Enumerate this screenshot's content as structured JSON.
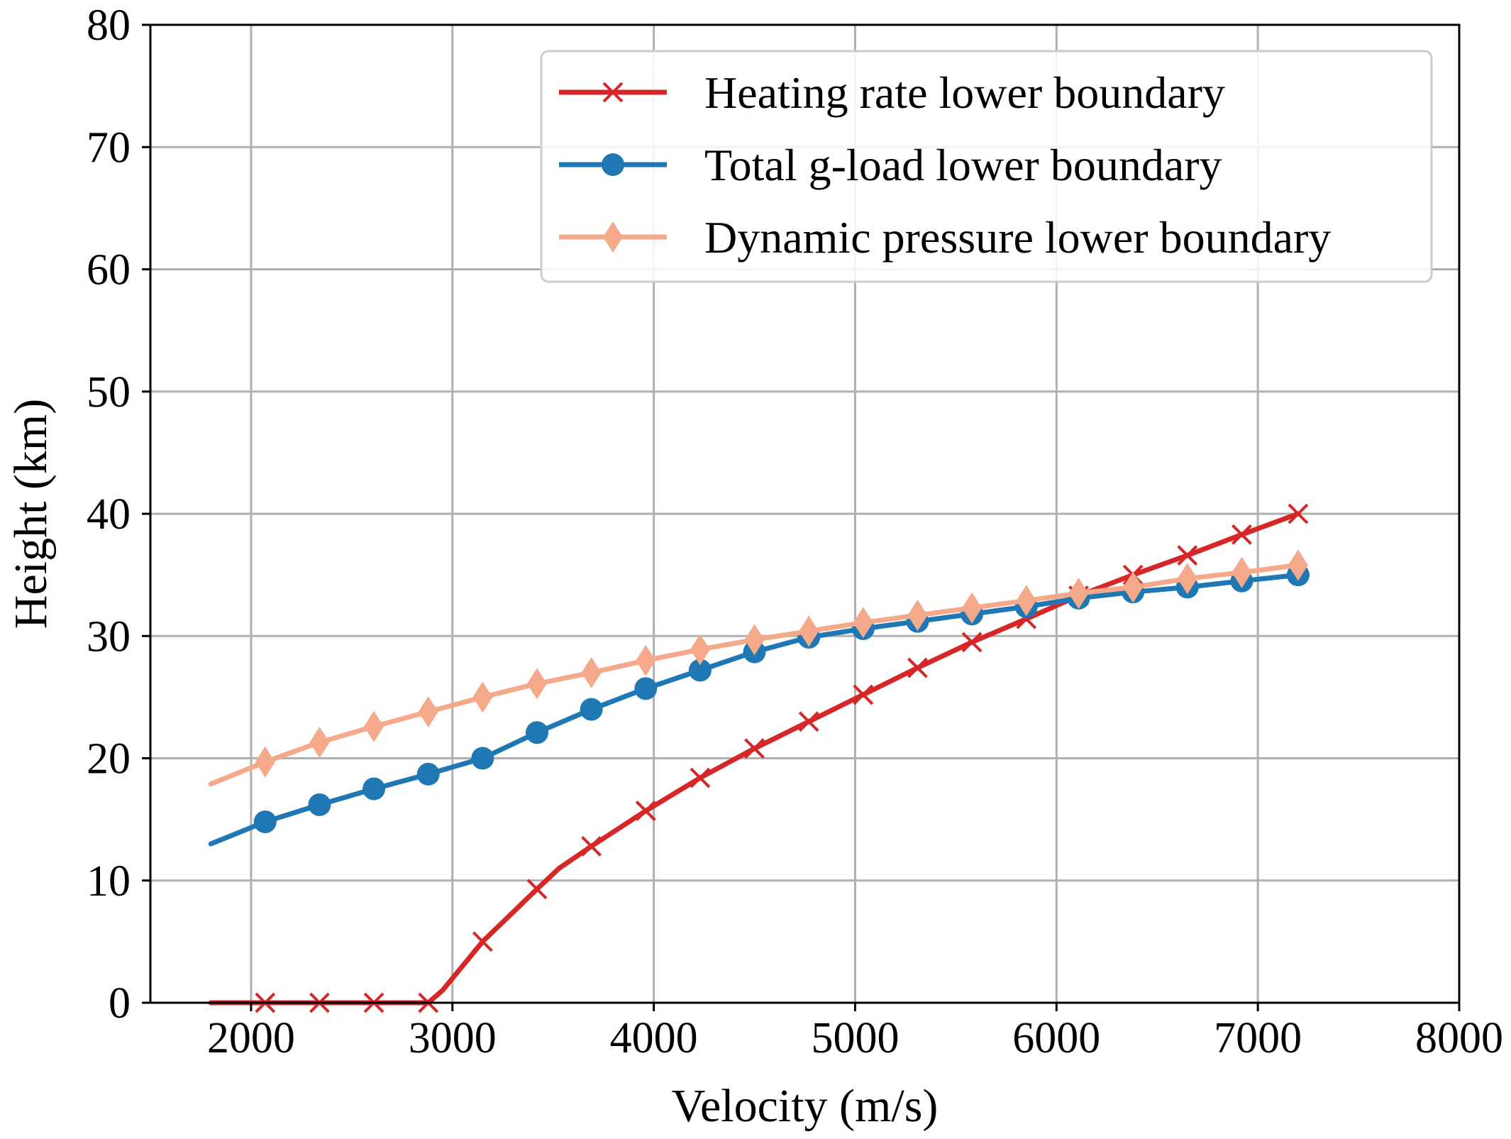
{
  "chart_data": {
    "type": "line",
    "title": "",
    "xlabel": "Velocity (m/s)",
    "ylabel": "Height (km)",
    "xlim": [
      1500,
      8000
    ],
    "ylim": [
      0,
      80
    ],
    "xticks": [
      2000,
      3000,
      4000,
      5000,
      6000,
      7000,
      8000
    ],
    "yticks": [
      0,
      10,
      20,
      30,
      40,
      50,
      60,
      70,
      80
    ],
    "xtick_labels": [
      "2000",
      "3000",
      "4000",
      "5000",
      "6000",
      "7000",
      "8000"
    ],
    "ytick_labels": [
      "0",
      "10",
      "20",
      "30",
      "40",
      "50",
      "60",
      "70",
      "80"
    ],
    "grid": true,
    "legend_position": "top-right",
    "series": [
      {
        "name": "Heating rate lower boundary",
        "color": "#d62728",
        "marker": "x",
        "line_x": [
          1800,
          2070,
          2340,
          2610,
          2880,
          2950,
          3150,
          3420,
          3530,
          3690,
          3960,
          4230,
          4500,
          4770,
          5040,
          5310,
          5580,
          5850,
          6110,
          6380,
          6650,
          6920,
          7200
        ],
        "line_y": [
          0,
          0,
          0,
          0,
          0,
          1,
          5,
          9.3,
          11,
          12.8,
          15.7,
          18.4,
          20.8,
          23.0,
          25.2,
          27.4,
          29.5,
          31.4,
          33.3,
          35.0,
          36.6,
          38.3,
          40.0
        ],
        "marker_x": [
          2070,
          2340,
          2610,
          2880,
          3150,
          3420,
          3690,
          3960,
          4230,
          4500,
          4770,
          5040,
          5310,
          5580,
          5850,
          6110,
          6380,
          6650,
          6920,
          7200
        ],
        "marker_y": [
          0,
          0,
          0,
          0,
          5,
          9.3,
          12.8,
          15.7,
          18.4,
          20.8,
          23.0,
          25.2,
          27.4,
          29.5,
          31.4,
          33.3,
          35.0,
          36.6,
          38.3,
          40.0
        ]
      },
      {
        "name": "Total g-load lower boundary",
        "color": "#1f77b4",
        "marker": "o",
        "line_x": [
          1800,
          2070,
          2340,
          2610,
          2880,
          3150,
          3420,
          3690,
          3960,
          4230,
          4500,
          4770,
          5040,
          5310,
          5580,
          5850,
          6110,
          6380,
          6650,
          6920,
          7200
        ],
        "line_y": [
          13.0,
          14.8,
          16.2,
          17.5,
          18.7,
          20.0,
          22.1,
          24.0,
          25.7,
          27.2,
          28.7,
          29.9,
          30.6,
          31.2,
          31.8,
          32.4,
          33.1,
          33.6,
          34.0,
          34.5,
          35.0
        ],
        "marker_x": [
          2070,
          2340,
          2610,
          2880,
          3150,
          3420,
          3690,
          3960,
          4230,
          4500,
          4770,
          5040,
          5310,
          5580,
          5850,
          6110,
          6380,
          6650,
          6920,
          7200
        ],
        "marker_y": [
          14.8,
          16.2,
          17.5,
          18.7,
          20.0,
          22.1,
          24.0,
          25.7,
          27.2,
          28.7,
          29.9,
          30.6,
          31.2,
          31.8,
          32.4,
          33.1,
          33.6,
          34.0,
          34.5,
          35.0
        ]
      },
      {
        "name": "Dynamic pressure lower boundary",
        "color": "#f4aa8a",
        "marker": "d",
        "line_x": [
          1800,
          2070,
          2340,
          2610,
          2880,
          3150,
          3420,
          3690,
          3960,
          4230,
          4500,
          4770,
          5040,
          5310,
          5580,
          5850,
          6110,
          6380,
          6650,
          6920,
          7200
        ],
        "line_y": [
          17.9,
          19.7,
          21.3,
          22.6,
          23.8,
          25.0,
          26.1,
          27.0,
          28.0,
          28.9,
          29.7,
          30.4,
          31.1,
          31.7,
          32.3,
          32.9,
          33.5,
          34.0,
          34.7,
          35.2,
          35.8
        ],
        "marker_x": [
          2070,
          2340,
          2610,
          2880,
          3150,
          3420,
          3690,
          3960,
          4230,
          4500,
          4770,
          5040,
          5310,
          5580,
          5850,
          6110,
          6380,
          6650,
          6920,
          7200
        ],
        "marker_y": [
          19.7,
          21.3,
          22.6,
          23.8,
          25.0,
          26.1,
          27.0,
          28.0,
          28.9,
          29.7,
          30.4,
          31.1,
          31.7,
          32.3,
          32.9,
          33.5,
          34.0,
          34.7,
          35.2,
          35.8
        ]
      }
    ]
  }
}
